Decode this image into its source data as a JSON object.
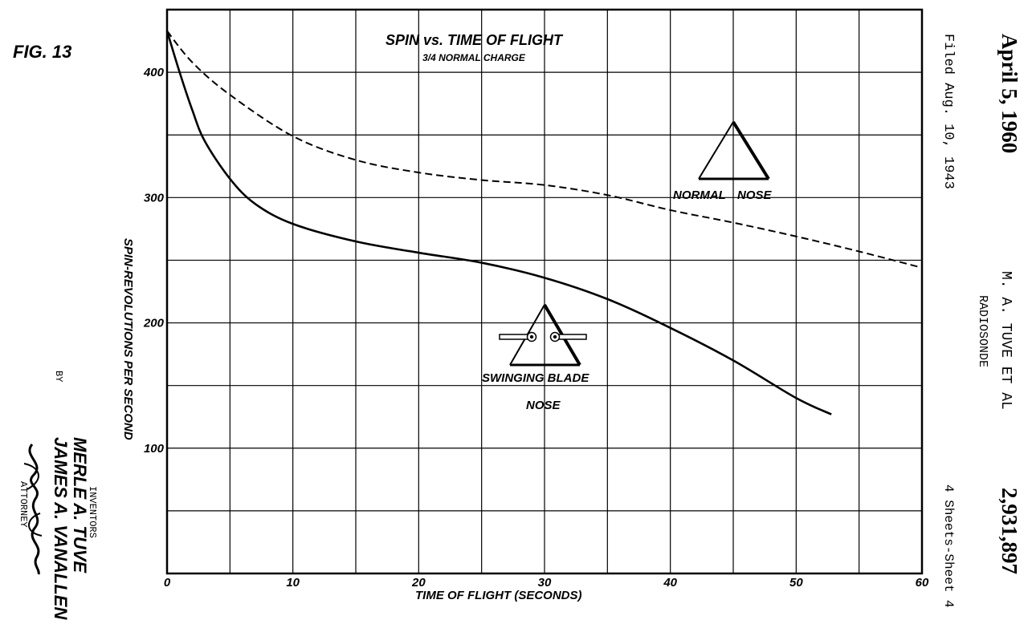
{
  "figure_label": "FIG. 13",
  "chart_data": {
    "type": "line",
    "title": "SPIN vs. TIME OF FLIGHT",
    "subtitle": "3/4 NORMAL CHARGE",
    "xlabel": "TIME OF FLIGHT  (SECONDS)",
    "ylabel": "SPIN-REVOLUTIONS PER SECOND",
    "xlim": [
      0,
      60
    ],
    "ylim": [
      0,
      450
    ],
    "x_ticks": [
      0,
      10,
      20,
      30,
      40,
      50,
      60
    ],
    "y_ticks": [
      100,
      200,
      300,
      400
    ],
    "x_tick_labels": [
      "0",
      "10",
      "20",
      "30",
      "40",
      "50",
      "60"
    ],
    "y_tick_labels": [
      "100",
      "200",
      "300",
      "400"
    ],
    "grid": true,
    "grid_x_step": 5,
    "grid_y_step": 50,
    "series": [
      {
        "style": "dashed",
        "x": [
          0,
          2,
          5,
          10,
          15,
          20,
          25,
          30,
          35,
          40,
          45,
          50,
          55,
          60
        ],
        "y": [
          433,
          408,
          382,
          349,
          330,
          320,
          314,
          310,
          302,
          290,
          280,
          269,
          257,
          244
        ]
      },
      {
        "style": "solid",
        "x": [
          0,
          1,
          2,
          3,
          5,
          7,
          10,
          15,
          20,
          25,
          30,
          35,
          40,
          45,
          50,
          52.8
        ],
        "y": [
          433,
          400,
          370,
          345,
          315,
          295,
          279,
          265,
          256,
          248,
          236,
          219,
          196,
          170,
          140,
          127
        ]
      }
    ],
    "annotations": [
      {
        "text": "NORMAL",
        "group": "normal-nose"
      },
      {
        "text": "NOSE",
        "group": "normal-nose"
      },
      {
        "text": "SWINGING BLADE",
        "group": "blade-nose"
      },
      {
        "text": "NOSE",
        "group": "blade-nose"
      }
    ]
  },
  "header": {
    "date": "April 5, 1960",
    "filed": "Filed Aug. 10, 1943",
    "author": "M. A. TUVE  ET AL",
    "invention": "RADIOSONDE",
    "sheets": "4 Sheets-Sheet 4",
    "patent_number": "2,931,897"
  },
  "inventors": {
    "label": "INVENTORS",
    "name1": "MERLE A. TUVE",
    "name2": "JAMES A. VANALLEN",
    "by": "BY",
    "attorney": "ATTORNEY"
  }
}
